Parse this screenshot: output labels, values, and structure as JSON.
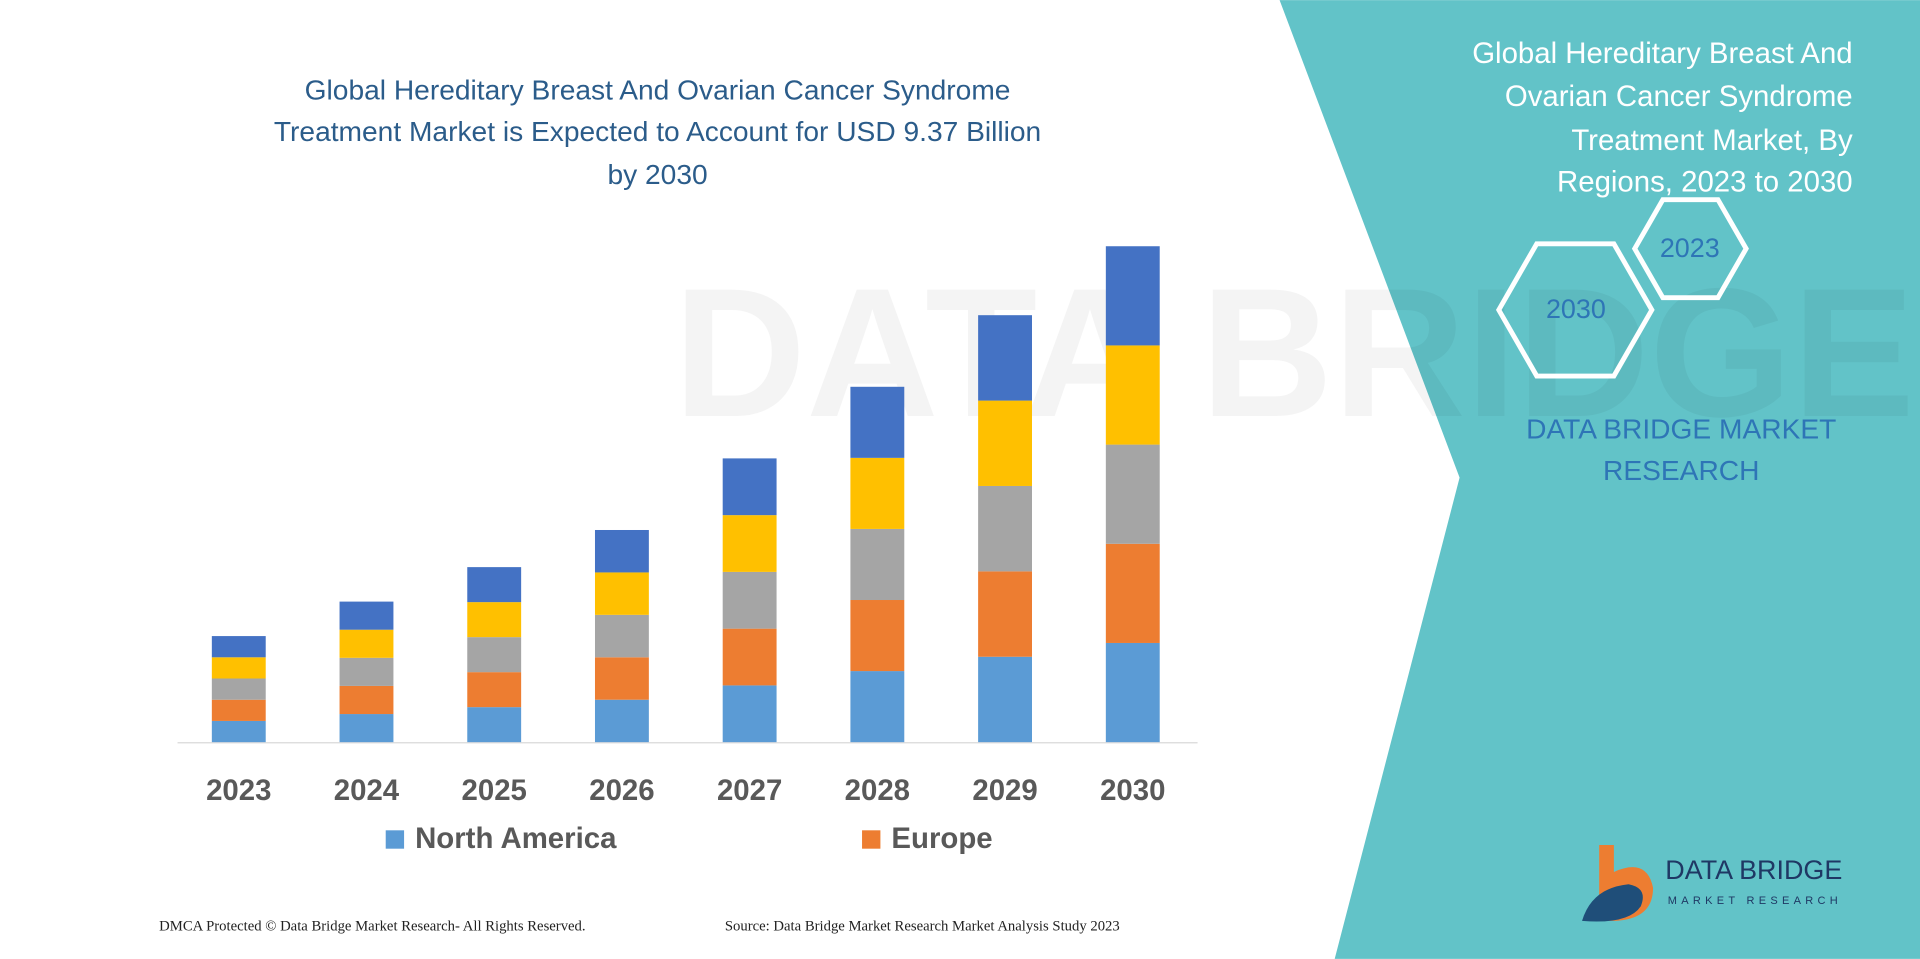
{
  "chart_data": {
    "type": "stacked-bar",
    "title": [
      "Global Hereditary Breast And Ovarian Cancer Syndrome",
      "Treatment Market is Expected to Account for USD 9.37 Billion",
      "by 2030"
    ],
    "categories": [
      "2023",
      "2024",
      "2025",
      "2026",
      "2027",
      "2028",
      "2029",
      "2030"
    ],
    "series": [
      {
        "name": "North America",
        "color": "#5b9bd5",
        "values": [
          0.4,
          0.53,
          0.66,
          0.8,
          1.07,
          1.34,
          1.61,
          1.87
        ]
      },
      {
        "name": "Europe",
        "color": "#ed7d31",
        "values": [
          0.4,
          0.53,
          0.66,
          0.8,
          1.07,
          1.34,
          1.61,
          1.87
        ]
      },
      {
        "color": "#a5a5a5",
        "values": [
          0.4,
          0.53,
          0.66,
          0.8,
          1.07,
          1.34,
          1.61,
          1.87
        ]
      },
      {
        "color": "#ffc000",
        "values": [
          0.4,
          0.53,
          0.66,
          0.8,
          1.07,
          1.34,
          1.61,
          1.87
        ]
      },
      {
        "color": "#4472c4",
        "values": [
          0.4,
          0.53,
          0.66,
          0.8,
          1.07,
          1.34,
          1.61,
          1.87
        ]
      }
    ]
  },
  "watermark": "DATA BRIDGE",
  "panel": {
    "heading": [
      "Global Hereditary Breast And",
      "Ovarian Cancer Syndrome",
      "Treatment Market, By",
      "Regions, 2023 to 2030"
    ],
    "hex_labels": [
      "2023",
      "2030"
    ],
    "brand": [
      "DATA BRIDGE MARKET",
      "RESEARCH"
    ],
    "logo": {
      "name": "DATA BRIDGE",
      "tagline": "MARKET RESEARCH"
    }
  },
  "footer": {
    "rights": "DMCA Protected © Data Bridge Market Research-  All Rights Reserved.",
    "source": "Source: Data Bridge Market Research  Market Analysis Study 2023"
  }
}
